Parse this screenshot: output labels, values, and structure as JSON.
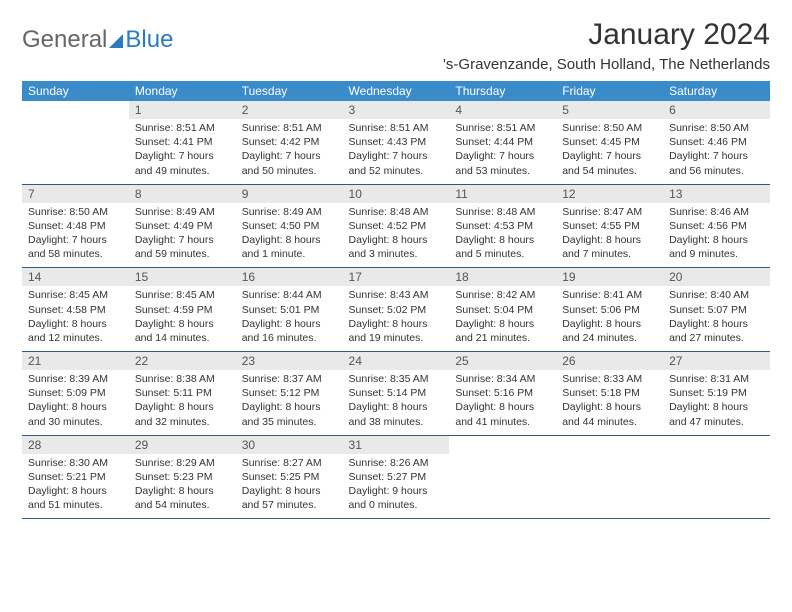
{
  "brand": {
    "part1": "General",
    "part2": "Blue"
  },
  "colors": {
    "header_bg": "#3a8bc9",
    "header_fg": "#ffffff",
    "daynum_bg": "#e9e9e9",
    "row_border": "#2b5a8a",
    "text": "#333333"
  },
  "title": {
    "month": "January 2024",
    "location": "'s-Gravenzande, South Holland, The Netherlands"
  },
  "weekdays": [
    "Sunday",
    "Monday",
    "Tuesday",
    "Wednesday",
    "Thursday",
    "Friday",
    "Saturday"
  ],
  "weeks": [
    [
      {
        "empty": true
      },
      {
        "n": "1",
        "sunrise": "8:51 AM",
        "sunset": "4:41 PM",
        "daylight": "7 hours and 49 minutes."
      },
      {
        "n": "2",
        "sunrise": "8:51 AM",
        "sunset": "4:42 PM",
        "daylight": "7 hours and 50 minutes."
      },
      {
        "n": "3",
        "sunrise": "8:51 AM",
        "sunset": "4:43 PM",
        "daylight": "7 hours and 52 minutes."
      },
      {
        "n": "4",
        "sunrise": "8:51 AM",
        "sunset": "4:44 PM",
        "daylight": "7 hours and 53 minutes."
      },
      {
        "n": "5",
        "sunrise": "8:50 AM",
        "sunset": "4:45 PM",
        "daylight": "7 hours and 54 minutes."
      },
      {
        "n": "6",
        "sunrise": "8:50 AM",
        "sunset": "4:46 PM",
        "daylight": "7 hours and 56 minutes."
      }
    ],
    [
      {
        "n": "7",
        "sunrise": "8:50 AM",
        "sunset": "4:48 PM",
        "daylight": "7 hours and 58 minutes."
      },
      {
        "n": "8",
        "sunrise": "8:49 AM",
        "sunset": "4:49 PM",
        "daylight": "7 hours and 59 minutes."
      },
      {
        "n": "9",
        "sunrise": "8:49 AM",
        "sunset": "4:50 PM",
        "daylight": "8 hours and 1 minute."
      },
      {
        "n": "10",
        "sunrise": "8:48 AM",
        "sunset": "4:52 PM",
        "daylight": "8 hours and 3 minutes."
      },
      {
        "n": "11",
        "sunrise": "8:48 AM",
        "sunset": "4:53 PM",
        "daylight": "8 hours and 5 minutes."
      },
      {
        "n": "12",
        "sunrise": "8:47 AM",
        "sunset": "4:55 PM",
        "daylight": "8 hours and 7 minutes."
      },
      {
        "n": "13",
        "sunrise": "8:46 AM",
        "sunset": "4:56 PM",
        "daylight": "8 hours and 9 minutes."
      }
    ],
    [
      {
        "n": "14",
        "sunrise": "8:45 AM",
        "sunset": "4:58 PM",
        "daylight": "8 hours and 12 minutes."
      },
      {
        "n": "15",
        "sunrise": "8:45 AM",
        "sunset": "4:59 PM",
        "daylight": "8 hours and 14 minutes."
      },
      {
        "n": "16",
        "sunrise": "8:44 AM",
        "sunset": "5:01 PM",
        "daylight": "8 hours and 16 minutes."
      },
      {
        "n": "17",
        "sunrise": "8:43 AM",
        "sunset": "5:02 PM",
        "daylight": "8 hours and 19 minutes."
      },
      {
        "n": "18",
        "sunrise": "8:42 AM",
        "sunset": "5:04 PM",
        "daylight": "8 hours and 21 minutes."
      },
      {
        "n": "19",
        "sunrise": "8:41 AM",
        "sunset": "5:06 PM",
        "daylight": "8 hours and 24 minutes."
      },
      {
        "n": "20",
        "sunrise": "8:40 AM",
        "sunset": "5:07 PM",
        "daylight": "8 hours and 27 minutes."
      }
    ],
    [
      {
        "n": "21",
        "sunrise": "8:39 AM",
        "sunset": "5:09 PM",
        "daylight": "8 hours and 30 minutes."
      },
      {
        "n": "22",
        "sunrise": "8:38 AM",
        "sunset": "5:11 PM",
        "daylight": "8 hours and 32 minutes."
      },
      {
        "n": "23",
        "sunrise": "8:37 AM",
        "sunset": "5:12 PM",
        "daylight": "8 hours and 35 minutes."
      },
      {
        "n": "24",
        "sunrise": "8:35 AM",
        "sunset": "5:14 PM",
        "daylight": "8 hours and 38 minutes."
      },
      {
        "n": "25",
        "sunrise": "8:34 AM",
        "sunset": "5:16 PM",
        "daylight": "8 hours and 41 minutes."
      },
      {
        "n": "26",
        "sunrise": "8:33 AM",
        "sunset": "5:18 PM",
        "daylight": "8 hours and 44 minutes."
      },
      {
        "n": "27",
        "sunrise": "8:31 AM",
        "sunset": "5:19 PM",
        "daylight": "8 hours and 47 minutes."
      }
    ],
    [
      {
        "n": "28",
        "sunrise": "8:30 AM",
        "sunset": "5:21 PM",
        "daylight": "8 hours and 51 minutes."
      },
      {
        "n": "29",
        "sunrise": "8:29 AM",
        "sunset": "5:23 PM",
        "daylight": "8 hours and 54 minutes."
      },
      {
        "n": "30",
        "sunrise": "8:27 AM",
        "sunset": "5:25 PM",
        "daylight": "8 hours and 57 minutes."
      },
      {
        "n": "31",
        "sunrise": "8:26 AM",
        "sunset": "5:27 PM",
        "daylight": "9 hours and 0 minutes."
      },
      {
        "empty": true
      },
      {
        "empty": true
      },
      {
        "empty": true
      }
    ]
  ],
  "labels": {
    "sunrise": "Sunrise:",
    "sunset": "Sunset:",
    "daylight": "Daylight:"
  }
}
